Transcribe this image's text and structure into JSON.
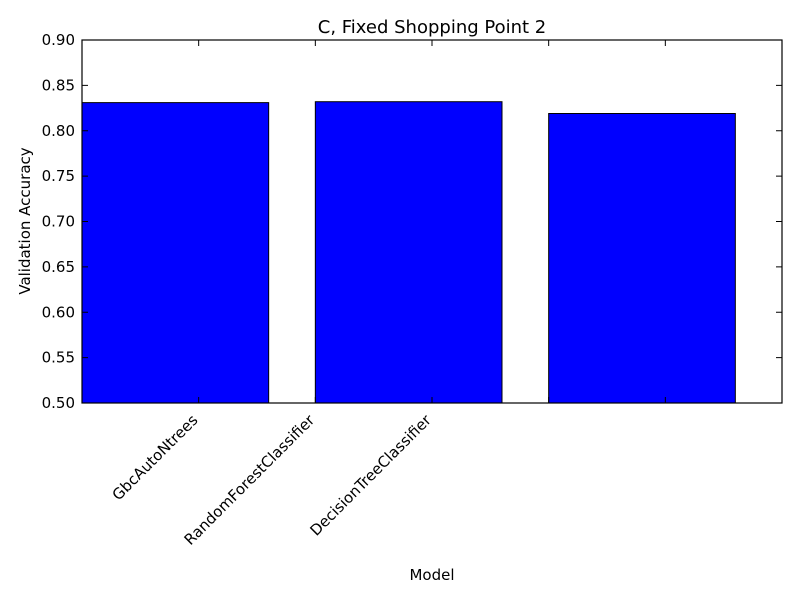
{
  "chart_data": {
    "type": "bar",
    "title": "C, Fixed Shopping Point 2",
    "xlabel": "Model",
    "ylabel": "Validation Accuracy",
    "ylim": [
      0.5,
      0.9
    ],
    "yticks": [
      "0.50",
      "0.55",
      "0.60",
      "0.65",
      "0.70",
      "0.75",
      "0.80",
      "0.85",
      "0.90"
    ],
    "xtick_labels": [
      "GbcAutoNtrees",
      "RandomForestClassifier",
      "DecisionTreeClassifier"
    ],
    "values": [
      0.831,
      0.832,
      0.819
    ],
    "bar_color": "#0000ff",
    "grid": false
  }
}
